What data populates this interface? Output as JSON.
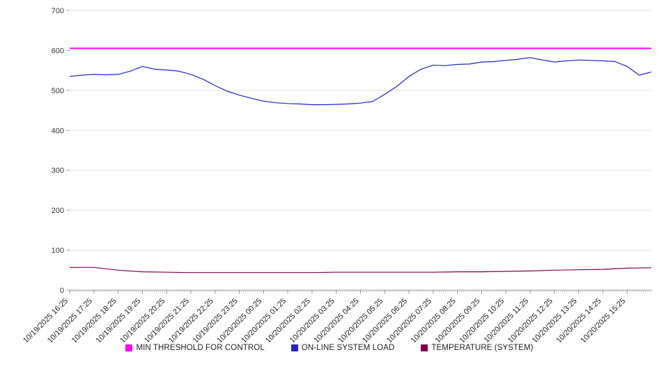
{
  "chart_data": {
    "type": "line",
    "title": "",
    "xlabel": "",
    "ylabel": "",
    "ylim": [
      0,
      700
    ],
    "yticks": [
      0,
      100,
      200,
      300,
      400,
      500,
      600,
      700
    ],
    "grid": "horizontal",
    "legend_position": "bottom",
    "minor_tick_interval_minutes": 5,
    "minor_ticks_count": 288,
    "x_labels": [
      "10/19/2025 16:25",
      "10/19/2025 17:25",
      "10/19/2025 18:25",
      "10/19/2025 19:25",
      "10/19/2025 20:25",
      "10/19/2025 21:25",
      "10/19/2025 22:25",
      "10/19/2025 23:25",
      "10/20/2025 00:25",
      "10/20/2025 01:25",
      "10/20/2025 02:25",
      "10/20/2025 03:25",
      "10/20/2025 04:25",
      "10/20/2025 05:25",
      "10/20/2025 06:25",
      "10/20/2025 07:25",
      "10/20/2025 08:25",
      "10/20/2025 09:25",
      "10/20/2025 10:25",
      "10/20/2025 11:25",
      "10/20/2025 12:25",
      "10/20/2025 13:25",
      "10/20/2025 14:25",
      "10/20/2025 15:25"
    ],
    "series": [
      {
        "name": "MIN THRESHOLD FOR CONTROL",
        "type": "threshold",
        "color": "#ff00ff",
        "value": 605
      },
      {
        "name": "ON-LINE SYSTEM LOAD",
        "type": "line",
        "color": "#2222cc",
        "interval_minutes": 30,
        "values": [
          535,
          538,
          540,
          539,
          540,
          548,
          560,
          553,
          551,
          548,
          540,
          528,
          512,
          498,
          488,
          480,
          473,
          469,
          467,
          466,
          464,
          464,
          465,
          466,
          468,
          472,
          490,
          510,
          535,
          553,
          563,
          562,
          565,
          566,
          571,
          572,
          575,
          578,
          582,
          576,
          571,
          574,
          576,
          575,
          574,
          572,
          560,
          538,
          546
        ]
      },
      {
        "name": "TEMPERATURE (SYSTEM)",
        "type": "line",
        "color": "#800050",
        "interval_minutes": 60,
        "values": [
          57,
          57,
          50,
          46,
          45,
          44,
          44,
          44,
          44,
          44,
          44,
          45,
          45,
          45,
          45,
          45,
          46,
          46,
          47,
          48,
          50,
          51,
          52,
          55,
          56
        ]
      }
    ]
  }
}
